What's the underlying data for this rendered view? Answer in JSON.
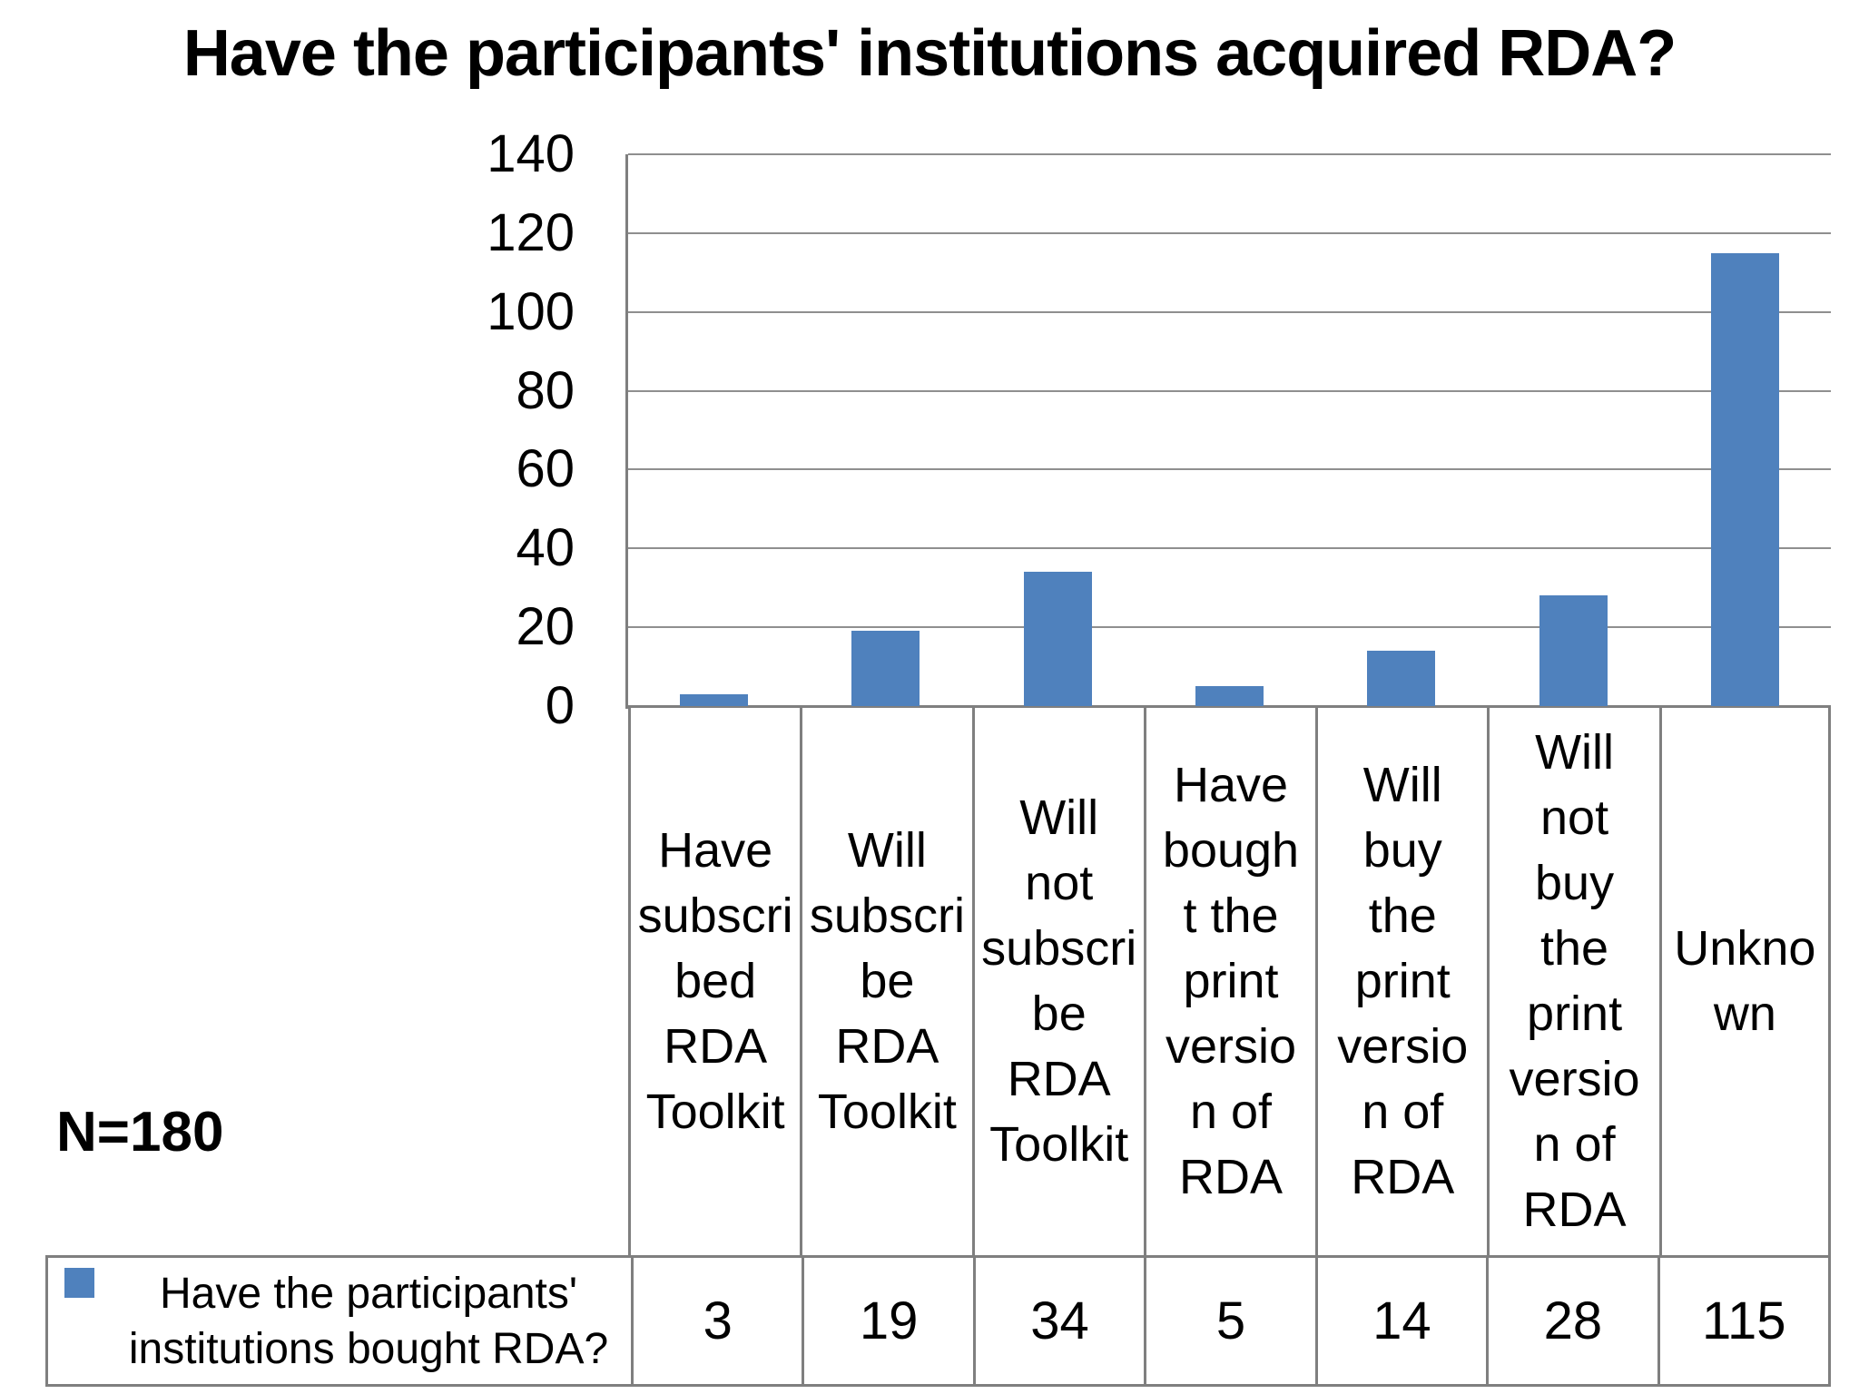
{
  "title": "Have the participants' institutions acquired RDA?",
  "annotation": {
    "sample_size": "N=180"
  },
  "chart_data": {
    "type": "bar",
    "title": "Have the participants' institutions acquired RDA?",
    "categories": [
      "Have subscribed RDA Toolkit",
      "Will subscribe RDA Toolkit",
      "Will not subscribe RDA Toolkit",
      "Have bought the print version of RDA",
      "Will buy the print version of RDA",
      "Will not buy the print version of RDA",
      "Unknown"
    ],
    "categories_wrapped": [
      "Have\nsubscri\nbed\nRDA\nToolkit",
      "Will\nsubscri\nbe\nRDA\nToolkit",
      "Will\nnot\nsubscri\nbe\nRDA\nToolkit",
      "Have\nbough\nt the\nprint\nversio\nn of\nRDA",
      "Will\nbuy\nthe\nprint\nversio\nn of\nRDA",
      "Will\nnot\nbuy\nthe\nprint\nversio\nn of\nRDA",
      "Unkno\nwn"
    ],
    "values": [
      3,
      19,
      34,
      5,
      14,
      28,
      115
    ],
    "series_name": "Have the participants' institutions bought RDA?",
    "series_name_wrapped": "Have the participants'\ninstitutions bought RDA?",
    "yticks": [
      140,
      120,
      100,
      80,
      60,
      40,
      20,
      0
    ],
    "ylim": [
      0,
      140
    ],
    "xlabel": "",
    "ylabel": "",
    "grid": "on",
    "legend_position": "bottom-table",
    "bar_color": "#4F81BD",
    "grid_color": "#8f8f8f",
    "sample_size": "N=180"
  }
}
